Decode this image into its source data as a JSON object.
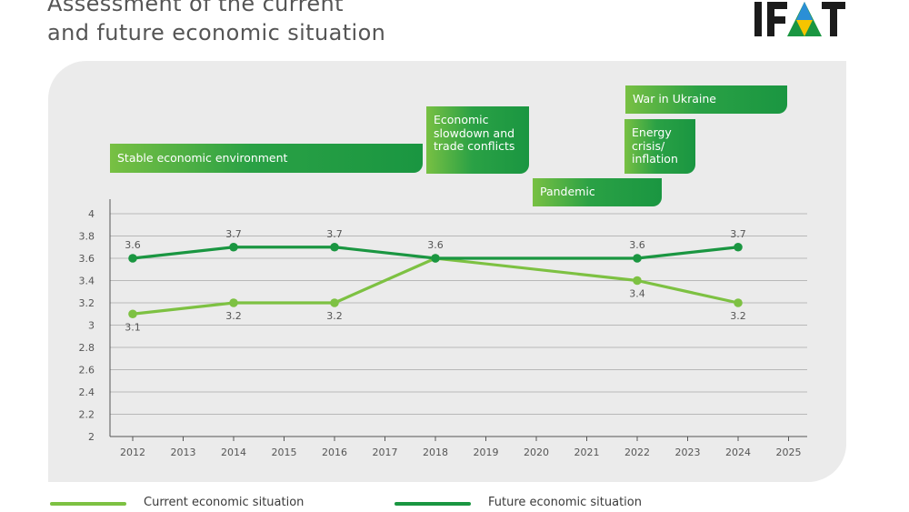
{
  "header": {
    "title_line1": "Assessment of the current",
    "title_line2": "and future economic situation"
  },
  "logo": {
    "text": "IFAT"
  },
  "events": {
    "stable": "Stable economic environment",
    "slowdown": "Economic slowdown and trade conflicts",
    "pandemic": "Pandemic",
    "energy": "Energy crisis/ inflation",
    "ukraine": "War in Ukraine"
  },
  "legend": {
    "current": "Current economic situation",
    "future": "Future economic situation"
  },
  "colors": {
    "current": "#7dc142",
    "future": "#1a9641",
    "grid": "#b8b8b8",
    "panel": "#ebebeb"
  },
  "chart_data": {
    "type": "line",
    "title": "Assessment of the current and future economic situation",
    "categories": [
      "2012",
      "2013",
      "2014",
      "2015",
      "2016",
      "2017",
      "2018",
      "2019",
      "2020",
      "2021",
      "2022",
      "2023",
      "2024",
      "2025"
    ],
    "ylim": [
      2,
      4
    ],
    "yticks": [
      "2",
      "2.2",
      "2.4",
      "2.6",
      "2.8",
      "3",
      "3.2",
      "3.4",
      "3.6",
      "3.8",
      "4"
    ],
    "series": [
      {
        "name": "Current economic situation",
        "x": [
          "2012",
          "2014",
          "2016",
          "2018",
          "2022",
          "2024"
        ],
        "values": [
          3.1,
          3.2,
          3.2,
          3.6,
          3.4,
          3.2
        ],
        "labels": [
          "3.1",
          "3.2",
          "3.2",
          "",
          "3.4",
          "3.2"
        ]
      },
      {
        "name": "Future economic situation",
        "x": [
          "2012",
          "2014",
          "2016",
          "2018",
          "2022",
          "2024"
        ],
        "values": [
          3.6,
          3.7,
          3.7,
          3.6,
          3.6,
          3.7
        ],
        "labels": [
          "3.6",
          "3.7",
          "3.7",
          "3.6",
          "3.6",
          "3.7"
        ]
      }
    ]
  }
}
